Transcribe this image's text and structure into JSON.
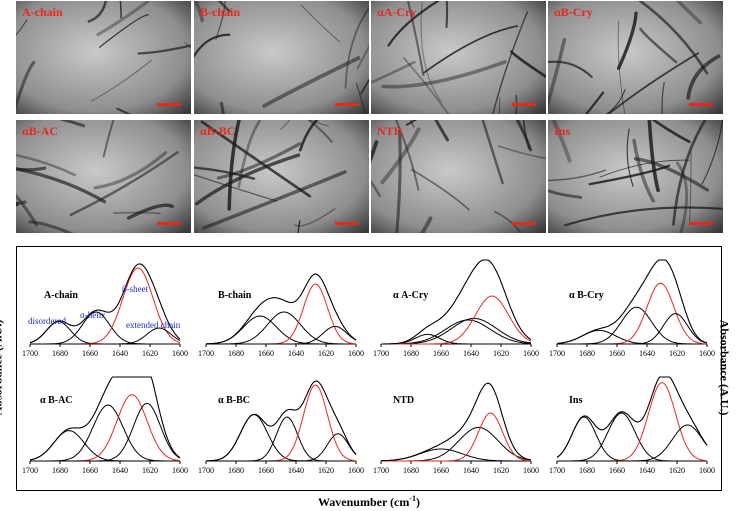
{
  "micrographs": [
    {
      "label": "A-chain"
    },
    {
      "label": "B-chain"
    },
    {
      "label": "αA-Cry"
    },
    {
      "label": "αB-Cry"
    },
    {
      "label": "αB-AC"
    },
    {
      "label": "αB-BC"
    },
    {
      "label": "NTD"
    },
    {
      "label": "Ins"
    }
  ],
  "colors": {
    "fit_curve": "#000000",
    "beta_component": "#e8281e",
    "annotation_text": "#1a2ccc",
    "micrograph_label": "#e8281e"
  },
  "axis": {
    "y_label": "Absorbance (A.U.)",
    "x_label": "Wavenumber (cm",
    "x_label_sup": "-1",
    "x_label_close": ")",
    "ticks": [
      "1700",
      "1680",
      "1660",
      "1640",
      "1620",
      "1600"
    ]
  },
  "annotations": {
    "disordered": "disordered",
    "alpha_helix": "α-helix",
    "beta_sheet": "β-sheet",
    "extended_chain": "extended chain"
  },
  "chart_data": [
    {
      "type": "line",
      "title": "A-chain",
      "xlim": [
        1700,
        1600
      ],
      "components": [
        {
          "center": 1681,
          "height": 0.28,
          "width": 8
        },
        {
          "center": 1656,
          "height": 0.4,
          "width": 9
        },
        {
          "center": 1628,
          "height": 0.95,
          "width": 10,
          "color": "red"
        },
        {
          "center": 1614,
          "height": 0.2,
          "width": 8
        }
      ]
    },
    {
      "type": "line",
      "title": "B-chain",
      "xlim": [
        1700,
        1600
      ],
      "components": [
        {
          "center": 1664,
          "height": 0.35,
          "width": 11
        },
        {
          "center": 1648,
          "height": 0.4,
          "width": 11
        },
        {
          "center": 1627,
          "height": 0.75,
          "width": 8,
          "color": "red"
        },
        {
          "center": 1614,
          "height": 0.22,
          "width": 8
        }
      ]
    },
    {
      "type": "line",
      "title": "α A-Cry",
      "xlim": [
        1700,
        1600
      ],
      "components": [
        {
          "center": 1669,
          "height": 0.12,
          "width": 8
        },
        {
          "center": 1642,
          "height": 0.3,
          "width": 15
        },
        {
          "center": 1638,
          "height": 0.32,
          "width": 15
        },
        {
          "center": 1626,
          "height": 0.6,
          "width": 11,
          "color": "red"
        }
      ]
    },
    {
      "type": "line",
      "title": "α B-Cry",
      "xlim": [
        1700,
        1600
      ],
      "components": [
        {
          "center": 1672,
          "height": 0.17,
          "width": 11
        },
        {
          "center": 1647,
          "height": 0.46,
          "width": 10
        },
        {
          "center": 1631,
          "height": 0.76,
          "width": 9,
          "color": "red"
        },
        {
          "center": 1621,
          "height": 0.38,
          "width": 8
        }
      ]
    },
    {
      "type": "line",
      "title": "α B-AC",
      "xlim": [
        1700,
        1600
      ],
      "components": [
        {
          "center": 1674,
          "height": 0.38,
          "width": 10
        },
        {
          "center": 1648,
          "height": 0.7,
          "width": 10
        },
        {
          "center": 1632,
          "height": 0.83,
          "width": 10,
          "color": "red"
        },
        {
          "center": 1622,
          "height": 0.72,
          "width": 9
        }
      ]
    },
    {
      "type": "line",
      "title": "α B-BC",
      "xlim": [
        1700,
        1600
      ],
      "components": [
        {
          "center": 1668,
          "height": 0.58,
          "width": 9
        },
        {
          "center": 1646,
          "height": 0.55,
          "width": 7
        },
        {
          "center": 1627,
          "height": 0.95,
          "width": 8,
          "color": "red"
        },
        {
          "center": 1612,
          "height": 0.34,
          "width": 7
        }
      ]
    },
    {
      "type": "line",
      "title": "NTD",
      "xlim": [
        1700,
        1600
      ],
      "components": [
        {
          "center": 1660,
          "height": 0.15,
          "width": 14
        },
        {
          "center": 1635,
          "height": 0.42,
          "width": 13
        },
        {
          "center": 1627,
          "height": 0.6,
          "width": 8,
          "color": "red"
        }
      ]
    },
    {
      "type": "line",
      "title": "Ins",
      "xlim": [
        1700,
        1600
      ],
      "components": [
        {
          "center": 1682,
          "height": 0.55,
          "width": 8
        },
        {
          "center": 1657,
          "height": 0.6,
          "width": 9
        },
        {
          "center": 1630,
          "height": 0.98,
          "width": 9,
          "color": "red"
        },
        {
          "center": 1613,
          "height": 0.45,
          "width": 10
        }
      ]
    }
  ]
}
